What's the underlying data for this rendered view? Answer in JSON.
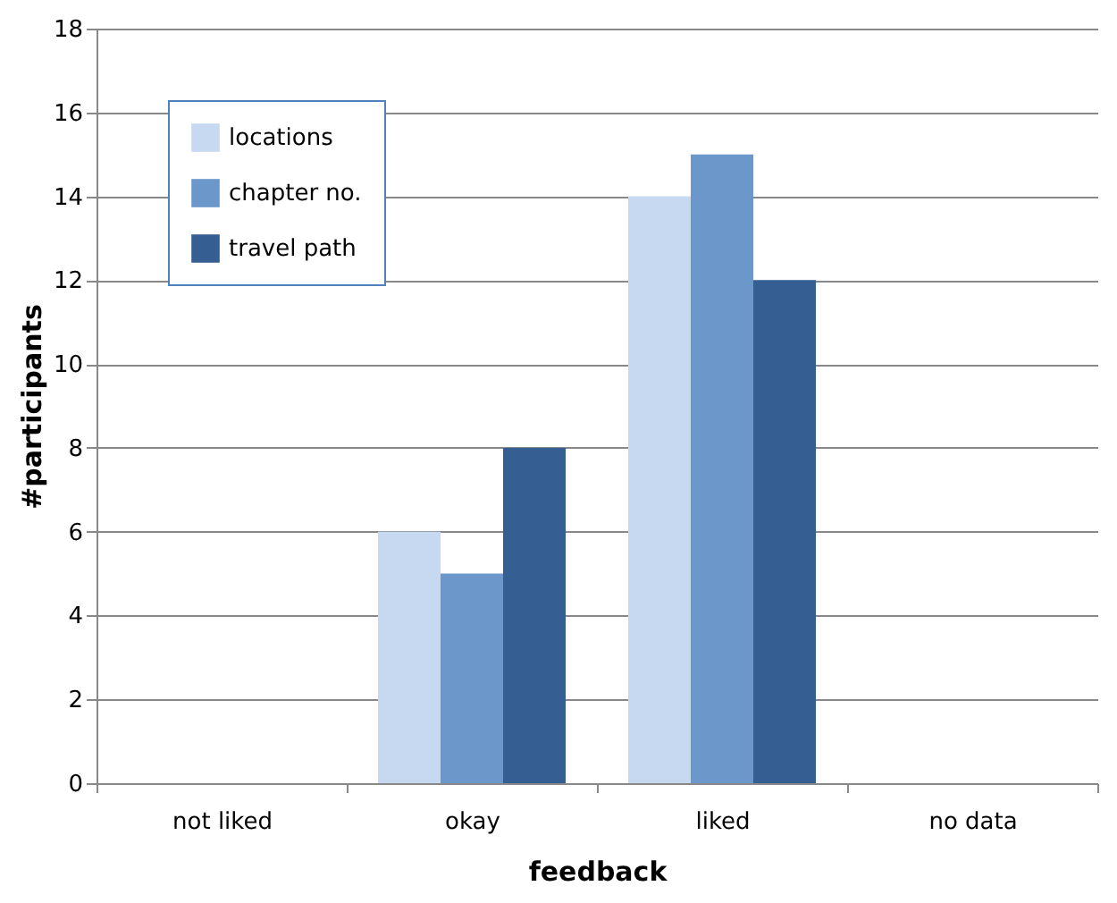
{
  "chart_data": {
    "type": "bar",
    "xlabel": "feedback",
    "ylabel": "#participants",
    "categories": [
      "not liked",
      "okay",
      "liked",
      "no data"
    ],
    "series": [
      {
        "name": "locations",
        "color": "#c6d9f1",
        "values": [
          0,
          6,
          14,
          0
        ]
      },
      {
        "name": "chapter no.",
        "color": "#6b97cb",
        "values": [
          0,
          5,
          15,
          0
        ]
      },
      {
        "name": "travel path",
        "color": "#355f92",
        "values": [
          0,
          8,
          12,
          0
        ]
      }
    ],
    "ylim": [
      0,
      18
    ],
    "yticks": [
      0,
      2,
      4,
      6,
      8,
      10,
      12,
      14,
      16,
      18
    ],
    "grid": "y",
    "legend": "top left"
  }
}
